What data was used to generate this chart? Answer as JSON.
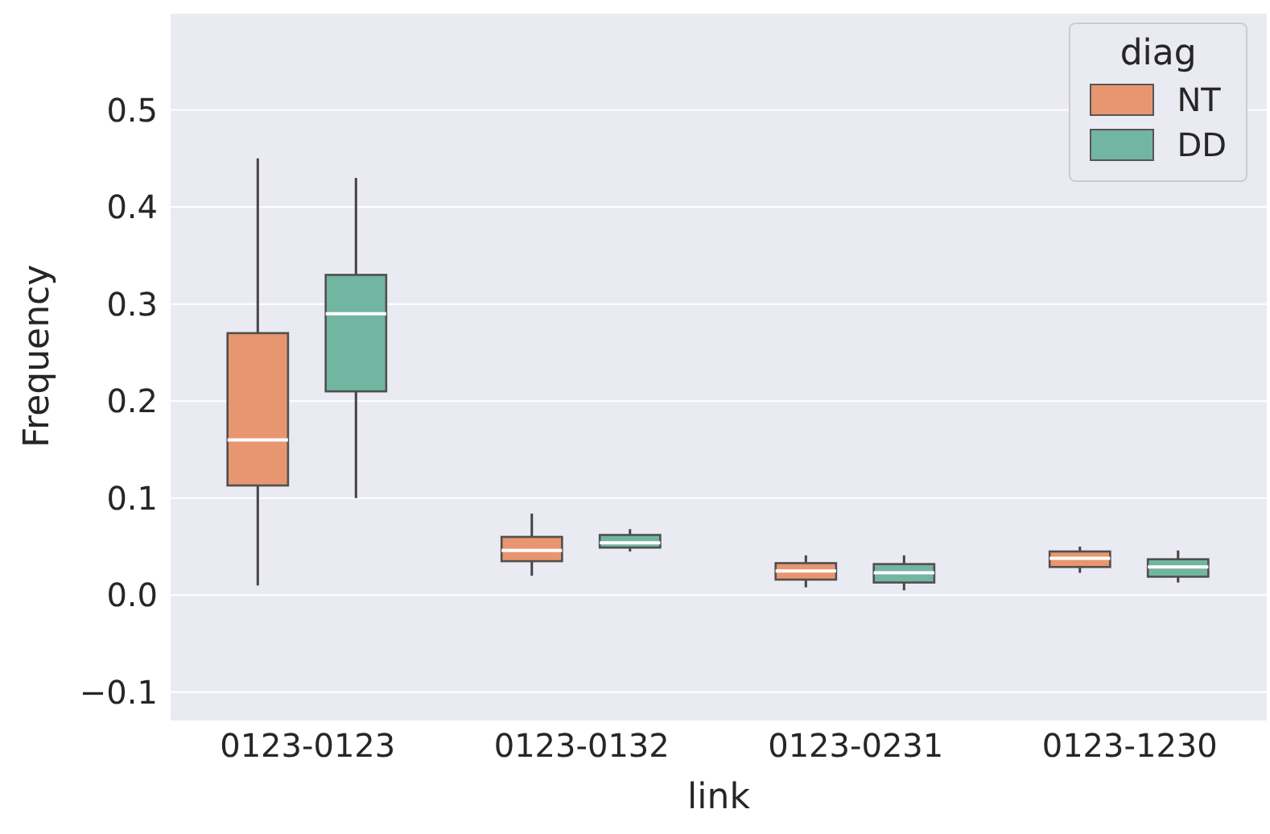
{
  "chart_data": {
    "type": "box",
    "xlabel": "link",
    "ylabel": "Frequency",
    "legend_title": "diag",
    "legend": "top right",
    "grid": "y",
    "categories": [
      "0123-0123",
      "0123-0132",
      "0123-0231",
      "0123-1230"
    ],
    "ylim": [
      -0.13,
      0.6
    ],
    "yticks": [
      -0.1,
      {
        "value": 0,
        "label": "0.0"
      },
      0.1,
      0.2,
      0.3,
      0.4,
      0.5
    ],
    "series": [
      {
        "name": "NT",
        "color": "#e8966f",
        "boxes": [
          {
            "low": 0.01,
            "q1": 0.113,
            "median": 0.16,
            "q3": 0.27,
            "high": 0.45
          },
          {
            "low": 0.02,
            "q1": 0.035,
            "median": 0.046,
            "q3": 0.06,
            "high": 0.084
          },
          {
            "low": 0.008,
            "q1": 0.016,
            "median": 0.025,
            "q3": 0.033,
            "high": 0.041
          },
          {
            "low": 0.023,
            "q1": 0.029,
            "median": 0.038,
            "q3": 0.045,
            "high": 0.05
          }
        ]
      },
      {
        "name": "DD",
        "color": "#72b5a0",
        "boxes": [
          {
            "low": 0.1,
            "q1": 0.21,
            "median": 0.29,
            "q3": 0.33,
            "high": 0.43
          },
          {
            "low": 0.045,
            "q1": 0.049,
            "median": 0.054,
            "q3": 0.062,
            "high": 0.068
          },
          {
            "low": 0.005,
            "q1": 0.013,
            "median": 0.023,
            "q3": 0.032,
            "high": 0.041
          },
          {
            "low": 0.013,
            "q1": 0.019,
            "median": 0.029,
            "q3": 0.037,
            "high": 0.046
          }
        ]
      }
    ]
  }
}
